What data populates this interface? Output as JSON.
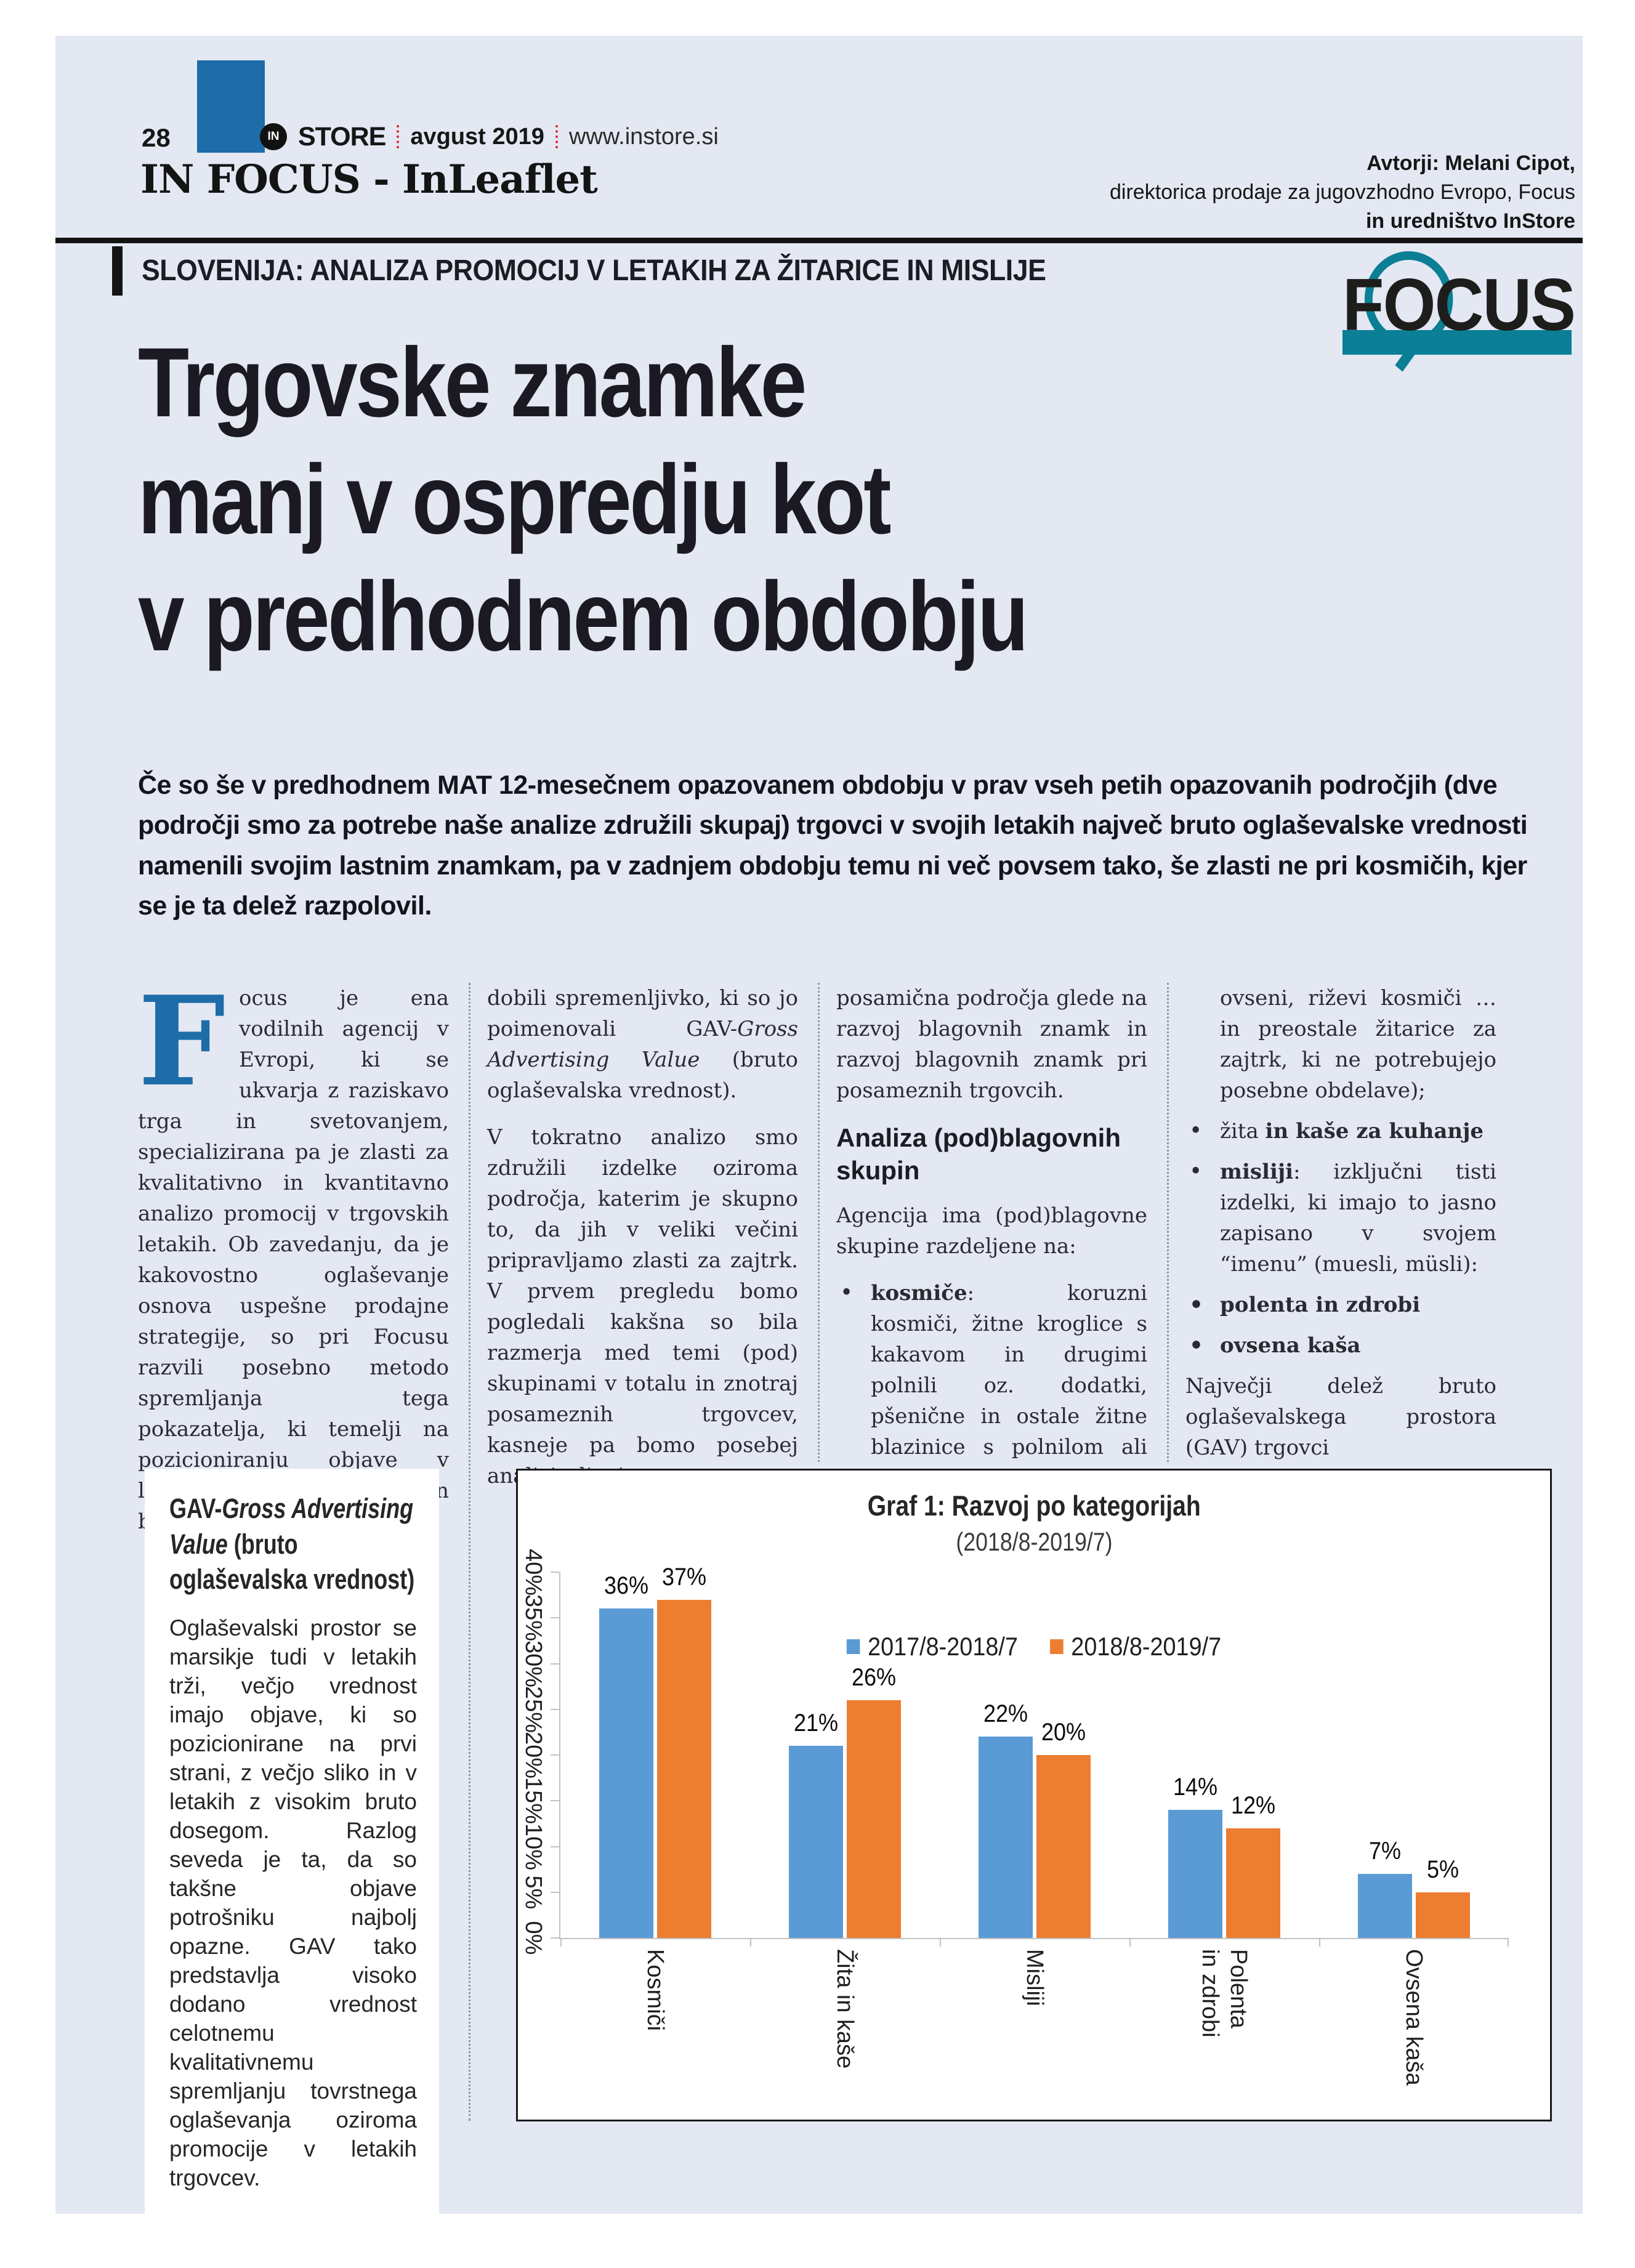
{
  "page": {
    "number": "28",
    "masthead": {
      "logo_in": "IN",
      "logo_store": "STORE",
      "date": "avgust 2019",
      "url": "www.instore.si"
    },
    "section_title": "IN FOCUS - InLeaflet",
    "authors": {
      "line1": "Avtorji: Melani Cipot,",
      "line2": "direktorica prodaje za jugovzhodno Evropo, Focus",
      "line3": "in uredništvo InStore"
    },
    "kicker": "SLOVENIJA: ANALIZA PROMOCIJ V LETAKIH ZA ŽITARICE IN MISLIJE",
    "focus_logo": {
      "f": "F",
      "o": "O",
      "cus": "CUS"
    },
    "headline": [
      "Trgovske znamke",
      "manj v ospredju kot",
      "v predhodnem obdobju"
    ],
    "lead": "Če so še v predhodnem MAT 12-mesečnem opazovanem obdobju v prav vseh petih opazovanih področjih (dve področji smo za potrebe naše analize združili skupaj) trgovci v svojih letakih največ bruto oglaševalske vrednosti namenili svojim lastnim znamkam, pa v zadnjem obdobju temu ni več povsem tako, še zlasti ne pri kosmičih, kjer se je ta delež razpolovil."
  },
  "article": {
    "col1_dropcap": "F",
    "col1_text": "ocus je ena vodilnih agencij v Evropi, ki se ukvarja z raziskavo trga in svetovanjem, specializirana pa je zlasti za kvalitativno in kvantitavno analizo promocij v trgovskih letakih. Ob zavedanju, da je kakovostno oglaševanje osnova uspešne prodajne strategije, so pri Focusu razvili posebno metodo spremljanja tega pokazatelja, ki temelji na pozicioniranju objave v letaku, velikosti objave in bruto dosega objave in tako",
    "col2_p1_pre": "dobili spremenljivko, ki so jo poimenovali GAV-",
    "col2_p1_italic": "Gross Advertising Value",
    "col2_p1_post": " (bruto oglaševalska vrednost).",
    "col2_p2": "V tokratno analizo smo združili izdelke oziroma področja, katerim je skupno to, da jih v veliki večini pripravljamo zlasti za zajtrk. V prvem pregledu bomo pogledali kakšna so bila razmerja med temi (pod) skupinami v totalu in znotraj posameznih trgovcev, kasneje pa bomo posebej analizirali tri",
    "col3_p1": "posamična področja glede na razvoj blagovnih znamk in razvoj blagovnih znamk pri posameznih trgovcih.",
    "col3_heading": "Analiza (pod)blagovnih skupin",
    "col3_p2": "Agencija ima (pod)blagovne skupine razdeljene na:",
    "col3_bullet1_bold": "kosmiče",
    "col3_bullet1_rest": ": koruzni kosmiči, žitne kroglice s kakavom in drugimi polnili oz. dodatki, pšenične in ostale žitne blazinice s polnilom ali brez,",
    "col4_cont": "ovseni, riževi kosmiči … in preostale žitarice za zajtrk, ki ne potrebujejo posebne obdelave);",
    "col4_b1_pre": "žita ",
    "col4_b1_bold": "in kaše za kuhanje",
    "col4_b2_bold": "misliji",
    "col4_b2_rest": ": izključni tisti izdelki, ki imajo to jasno zapisano v svojem “imenu” (muesli, müsli):",
    "col4_b3": "polenta in zdrobi",
    "col4_b4": "ovsena kaša",
    "col4_p2": "Največji delež bruto oglaševalskega prostora (GAV) trgovci"
  },
  "sidebar": {
    "title_pre": "GAV-",
    "title_italic": "Gross Advertising Value",
    "title_post": " (bruto oglaševalska vrednost)",
    "body": "Oglaševalski prostor se marsikje tudi v letakih trži, večjo vrednost imajo objave, ki so pozicionirane na prvi strani, z večjo sliko in v letakih z visokim bruto dosegom. Razlog seveda je ta, da so takšne objave potrošniku najbolj opazne. GAV tako predstavlja visoko dodano vrednost celotnemu kvalitativnemu spremljanju tovrstnega oglaševanja oziroma promocije v letakih trgovcev."
  },
  "chart_data": {
    "type": "bar",
    "title": "Graf 1: Razvoj po kategorijah",
    "subtitle": "(2018/8-2019/7)",
    "categories": [
      "Kosmiči",
      "Žita in kaše",
      "Misliji",
      "Polenta\nin zdrobi",
      "Ovsena kaša"
    ],
    "series": [
      {
        "name": "2017/8-2018/7",
        "color": "#5b9bd5",
        "values": [
          36,
          21,
          22,
          14,
          7
        ]
      },
      {
        "name": "2018/8-2019/7",
        "color": "#ed7d31",
        "values": [
          37,
          26,
          20,
          12,
          5
        ]
      }
    ],
    "ylim": [
      0,
      40
    ],
    "ytick_step": 5,
    "ytick_suffix": "%",
    "value_suffix": "%",
    "grid": false,
    "legend_position": "inside-upper-middle",
    "xlabel": "",
    "ylabel": ""
  },
  "colors": {
    "page_background": "#e4e8f3",
    "accent_blue": "#1e6ca8",
    "focus_teal": "#0a7f96",
    "separator_red": "#e0262c",
    "chart_blue": "#5b9bd5",
    "chart_orange": "#ed7d31",
    "text": "#1d1c24"
  }
}
